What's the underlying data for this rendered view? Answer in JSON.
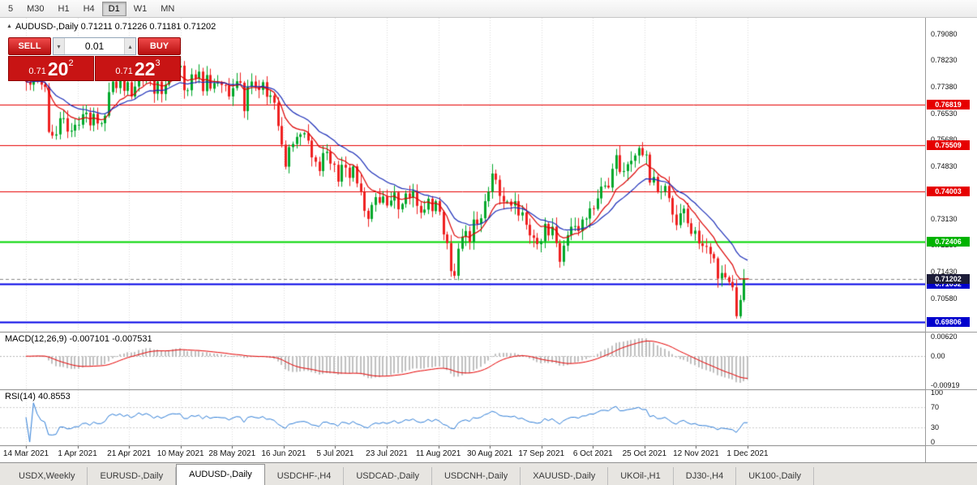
{
  "toolbar": {
    "timeframes": [
      {
        "label": "5",
        "active": false
      },
      {
        "label": "M30",
        "active": false
      },
      {
        "label": "H1",
        "active": false
      },
      {
        "label": "H4",
        "active": false
      },
      {
        "label": "D1",
        "active": true
      },
      {
        "label": "W1",
        "active": false
      },
      {
        "label": "MN",
        "active": false
      }
    ]
  },
  "chart_header": {
    "symbol_ohlc": "AUDUSD-,Daily 0.71211 0.71226 0.71181 0.71202"
  },
  "trade_panel": {
    "sell_label": "SELL",
    "buy_label": "BUY",
    "volume": "0.01",
    "sell_price": {
      "small": "0.71",
      "big": "20",
      "sup": "2"
    },
    "buy_price": {
      "small": "0.71",
      "big": "22",
      "sup": "3"
    }
  },
  "chart_data": {
    "type": "candlestick",
    "symbol": "AUDUSD-,Daily",
    "timeframe": "D1",
    "y_range": [
      0.695,
      0.796
    ],
    "last_bar": {
      "open": 0.71211,
      "high": 0.71226,
      "low": 0.71181,
      "close": 0.71202
    },
    "colors": {
      "up": "#00a82a",
      "down": "#ef2020"
    },
    "closes": [
      0.7754,
      0.7745,
      0.7779,
      0.7762,
      0.7745,
      0.7738,
      0.7593,
      0.7581,
      0.7585,
      0.7637,
      0.7637,
      0.7594,
      0.7597,
      0.7616,
      0.7616,
      0.765,
      0.7655,
      0.7614,
      0.7651,
      0.762,
      0.7621,
      0.7645,
      0.7721,
      0.7755,
      0.7734,
      0.7764,
      0.7725,
      0.7753,
      0.7707,
      0.7739,
      0.7799,
      0.7764,
      0.7796,
      0.7768,
      0.7716,
      0.7755,
      0.7715,
      0.7745,
      0.7784,
      0.7805,
      0.78,
      0.7806,
      0.7727,
      0.7727,
      0.7778,
      0.7764,
      0.7787,
      0.7724,
      0.7776,
      0.7732,
      0.775,
      0.7751,
      0.7744,
      0.7742,
      0.7707,
      0.7734,
      0.7756,
      0.7751,
      0.766,
      0.7738,
      0.7755,
      0.7737,
      0.7728,
      0.7753,
      0.7706,
      0.771,
      0.7687,
      0.7612,
      0.7552,
      0.7481,
      0.7544,
      0.7554,
      0.7577,
      0.7585,
      0.7589,
      0.7565,
      0.7511,
      0.7497,
      0.7467,
      0.7525,
      0.7529,
      0.7491,
      0.7487,
      0.7433,
      0.7487,
      0.7478,
      0.7445,
      0.7482,
      0.7427,
      0.7399,
      0.7339,
      0.7313,
      0.7358,
      0.7383,
      0.7365,
      0.7385,
      0.7356,
      0.7372,
      0.7398,
      0.7344,
      0.7361,
      0.7395,
      0.7381,
      0.7403,
      0.7355,
      0.7333,
      0.7343,
      0.7378,
      0.7338,
      0.737,
      0.7336,
      0.7263,
      0.7235,
      0.7145,
      0.713,
      0.7217,
      0.7256,
      0.7274,
      0.7238,
      0.7311,
      0.7297,
      0.7315,
      0.737,
      0.74,
      0.7459,
      0.7439,
      0.7387,
      0.7369,
      0.7369,
      0.7356,
      0.737,
      0.7324,
      0.7334,
      0.7294,
      0.726,
      0.7252,
      0.7232,
      0.7241,
      0.7297,
      0.726,
      0.7288,
      0.7235,
      0.7175,
      0.7227,
      0.7261,
      0.7288,
      0.729,
      0.7274,
      0.7311,
      0.7314,
      0.7347,
      0.7345,
      0.7379,
      0.7417,
      0.742,
      0.7414,
      0.7474,
      0.7518,
      0.7464,
      0.7467,
      0.7489,
      0.75,
      0.7517,
      0.7541,
      0.7518,
      0.752,
      0.743,
      0.7448,
      0.74,
      0.7401,
      0.7419,
      0.738,
      0.7327,
      0.7293,
      0.7331,
      0.7346,
      0.7299,
      0.7265,
      0.7275,
      0.7234,
      0.7226,
      0.7223,
      0.72,
      0.7186,
      0.7121,
      0.7139,
      0.7125,
      0.711,
      0.7093,
      0.7,
      0.7052,
      0.7121,
      0.71202
    ],
    "moving_averages": [
      {
        "period": 10,
        "type": "ema",
        "color": "#dd0000"
      },
      {
        "period": 20,
        "type": "ema",
        "color": "#1b2db8"
      }
    ],
    "horizontal_lines": [
      {
        "price": 0.76819,
        "label": "0.76819",
        "color": "#e60000",
        "badge_color": "#e60000",
        "width": 1
      },
      {
        "price": 0.75509,
        "label": "0.75509",
        "color": "#e60000",
        "badge_color": "#e60000",
        "width": 1
      },
      {
        "price": 0.74003,
        "label": "0.74003",
        "color": "#e60000",
        "badge_color": "#e60000",
        "width": 1
      },
      {
        "price": 0.72406,
        "label": "0.72406",
        "color": "#00d500",
        "badge_color": "#00b300",
        "width": 2
      },
      {
        "price": 0.71052,
        "label": "0.71052",
        "color": "#0000e6",
        "badge_color": "#0000cd",
        "width": 2
      },
      {
        "price": 0.69806,
        "label": "0.69806",
        "color": "#0000e6",
        "badge_color": "#0000cd",
        "width": 2
      }
    ],
    "current_price": {
      "price": 0.71202,
      "label": "0.71202",
      "badge_color": "#1c1c38"
    },
    "price_ticks": [
      "0.79080",
      "0.78230",
      "0.77380",
      "0.76530",
      "0.75680",
      "0.74830",
      "0.73980",
      "0.73130",
      "0.72280",
      "0.71430",
      "0.70580",
      "0.69730"
    ],
    "macd": {
      "fast": 12,
      "slow": 26,
      "signal": 9,
      "label": "MACD(12,26,9) -0.007101 -0.007531",
      "axis_ticks": [
        "0.00620",
        "0.00",
        "-0.00919"
      ],
      "histogram_color": "#c0c0c0",
      "signal_color": "#e60000"
    },
    "rsi": {
      "period": 14,
      "label": "RSI(14) 40.8553",
      "levels": [
        70,
        30
      ],
      "axis_ticks": [
        "100",
        "70",
        "30",
        "0"
      ],
      "color": "#2f7ed8"
    },
    "x_dates": [
      "14 Mar 2021",
      "1 Apr 2021",
      "21 Apr 2021",
      "10 May 2021",
      "28 May 2021",
      "16 Jun 2021",
      "5 Jul 2021",
      "23 Jul 2021",
      "11 Aug 2021",
      "30 Aug 2021",
      "17 Sep 2021",
      "6 Oct 2021",
      "25 Oct 2021",
      "12 Nov 2021",
      "1 Dec 2021"
    ]
  },
  "tabs": [
    {
      "label": "USDX,Weekly",
      "active": false
    },
    {
      "label": "EURUSD-,Daily",
      "active": false
    },
    {
      "label": "AUDUSD-,Daily",
      "active": true
    },
    {
      "label": "USDCHF-,H4",
      "active": false
    },
    {
      "label": "USDCAD-,Daily",
      "active": false
    },
    {
      "label": "USDCNH-,Daily",
      "active": false
    },
    {
      "label": "XAUUSD-,Daily",
      "active": false
    },
    {
      "label": "UKOil-,H1",
      "active": false
    },
    {
      "label": "DJ30-,H4",
      "active": false
    },
    {
      "label": "UK100-,Daily",
      "active": false
    }
  ]
}
